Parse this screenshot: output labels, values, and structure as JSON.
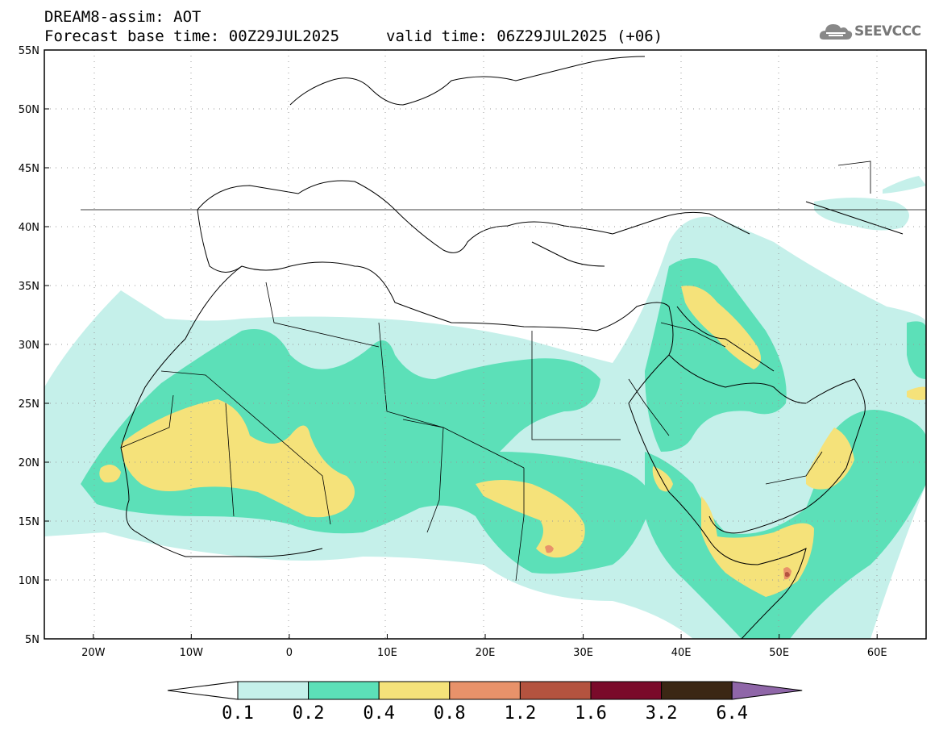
{
  "header": {
    "title": "DREAM8-assim: AOT",
    "base_time": "Forecast base time: 00Z29JUL2025",
    "valid_time": "valid time: 06Z29JUL2025 (+06)"
  },
  "logo": {
    "text": "SEEVCCC",
    "icon": "cloud-icon"
  },
  "map": {
    "lon_range": [
      -25,
      65
    ],
    "lat_range": [
      5,
      55
    ],
    "lat_labels": [
      "55N",
      "50N",
      "45N",
      "40N",
      "35N",
      "30N",
      "25N",
      "20N",
      "15N",
      "10N",
      "5N"
    ],
    "lon_labels": [
      "20W",
      "10W",
      "0",
      "10E",
      "20E",
      "30E",
      "40E",
      "50E",
      "60E"
    ],
    "grid": "dotted"
  },
  "colorbar": {
    "labels": [
      "0.1",
      "0.2",
      "0.4",
      "0.8",
      "1.2",
      "1.6",
      "3.2",
      "6.4"
    ],
    "colors": [
      "#ffffff",
      "#c5f0ea",
      "#5ce0b8",
      "#f5e27a",
      "#e8926a",
      "#b4533f",
      "#7a0a2a",
      "#3b2714",
      "#8f66a8"
    ]
  }
}
